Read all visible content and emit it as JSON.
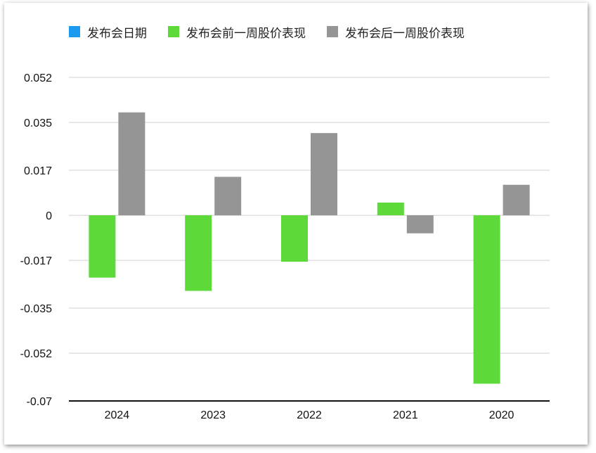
{
  "chart_data": {
    "type": "bar",
    "categories": [
      "2024",
      "2023",
      "2022",
      "2021",
      "2020"
    ],
    "series": [
      {
        "name": "发布会日期",
        "color": "#1a9bf0",
        "values": [
          null,
          null,
          null,
          null,
          null
        ]
      },
      {
        "name": "发布会前一周股价表现",
        "color": "#5dd93a",
        "values": [
          -0.0235,
          -0.0285,
          -0.0175,
          0.0048,
          -0.0635
        ]
      },
      {
        "name": "发布会后一周股价表现",
        "color": "#959595",
        "values": [
          0.0388,
          0.0145,
          0.031,
          -0.0068,
          0.0115
        ]
      }
    ],
    "y_ticks": [
      "0.052",
      "0.035",
      "0.017",
      "0",
      "-0.017",
      "-0.035",
      "-0.052",
      "-0.07"
    ],
    "ylim": [
      -0.07,
      0.052
    ],
    "grid": true,
    "legend_position": "top"
  }
}
